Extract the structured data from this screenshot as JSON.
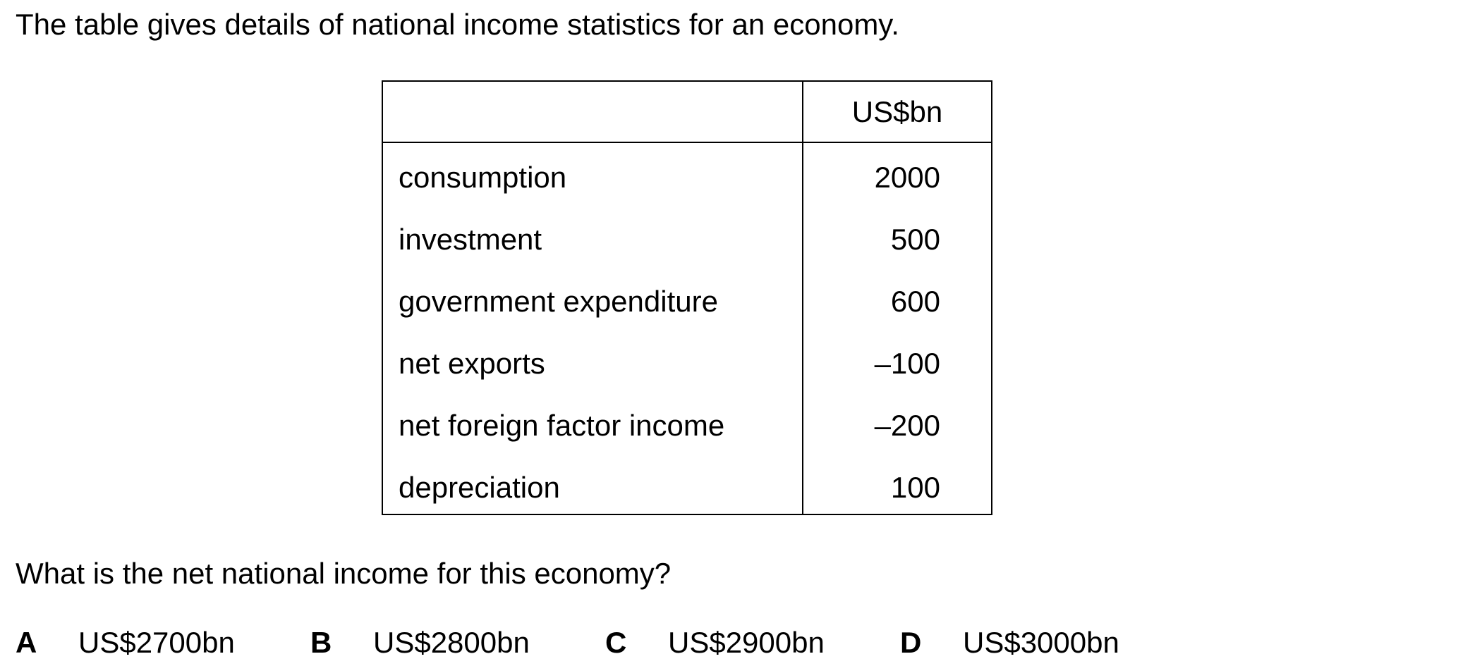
{
  "intro_text": "The table gives details of national income statistics for an economy.",
  "table": {
    "unit_header": "US$bn",
    "rows": [
      {
        "label": "consumption",
        "value": "2000"
      },
      {
        "label": "investment",
        "value": "500"
      },
      {
        "label": "government expenditure",
        "value": "600"
      },
      {
        "label": "net exports",
        "value": "–100"
      },
      {
        "label": "net foreign factor income",
        "value": "–200"
      },
      {
        "label": "depreciation",
        "value": "100"
      }
    ]
  },
  "question_text": "What is the net national income for this economy?",
  "options": [
    {
      "letter": "A",
      "text": "US$2700bn"
    },
    {
      "letter": "B",
      "text": "US$2800bn"
    },
    {
      "letter": "C",
      "text": "US$2900bn"
    },
    {
      "letter": "D",
      "text": "US$3000bn"
    }
  ]
}
